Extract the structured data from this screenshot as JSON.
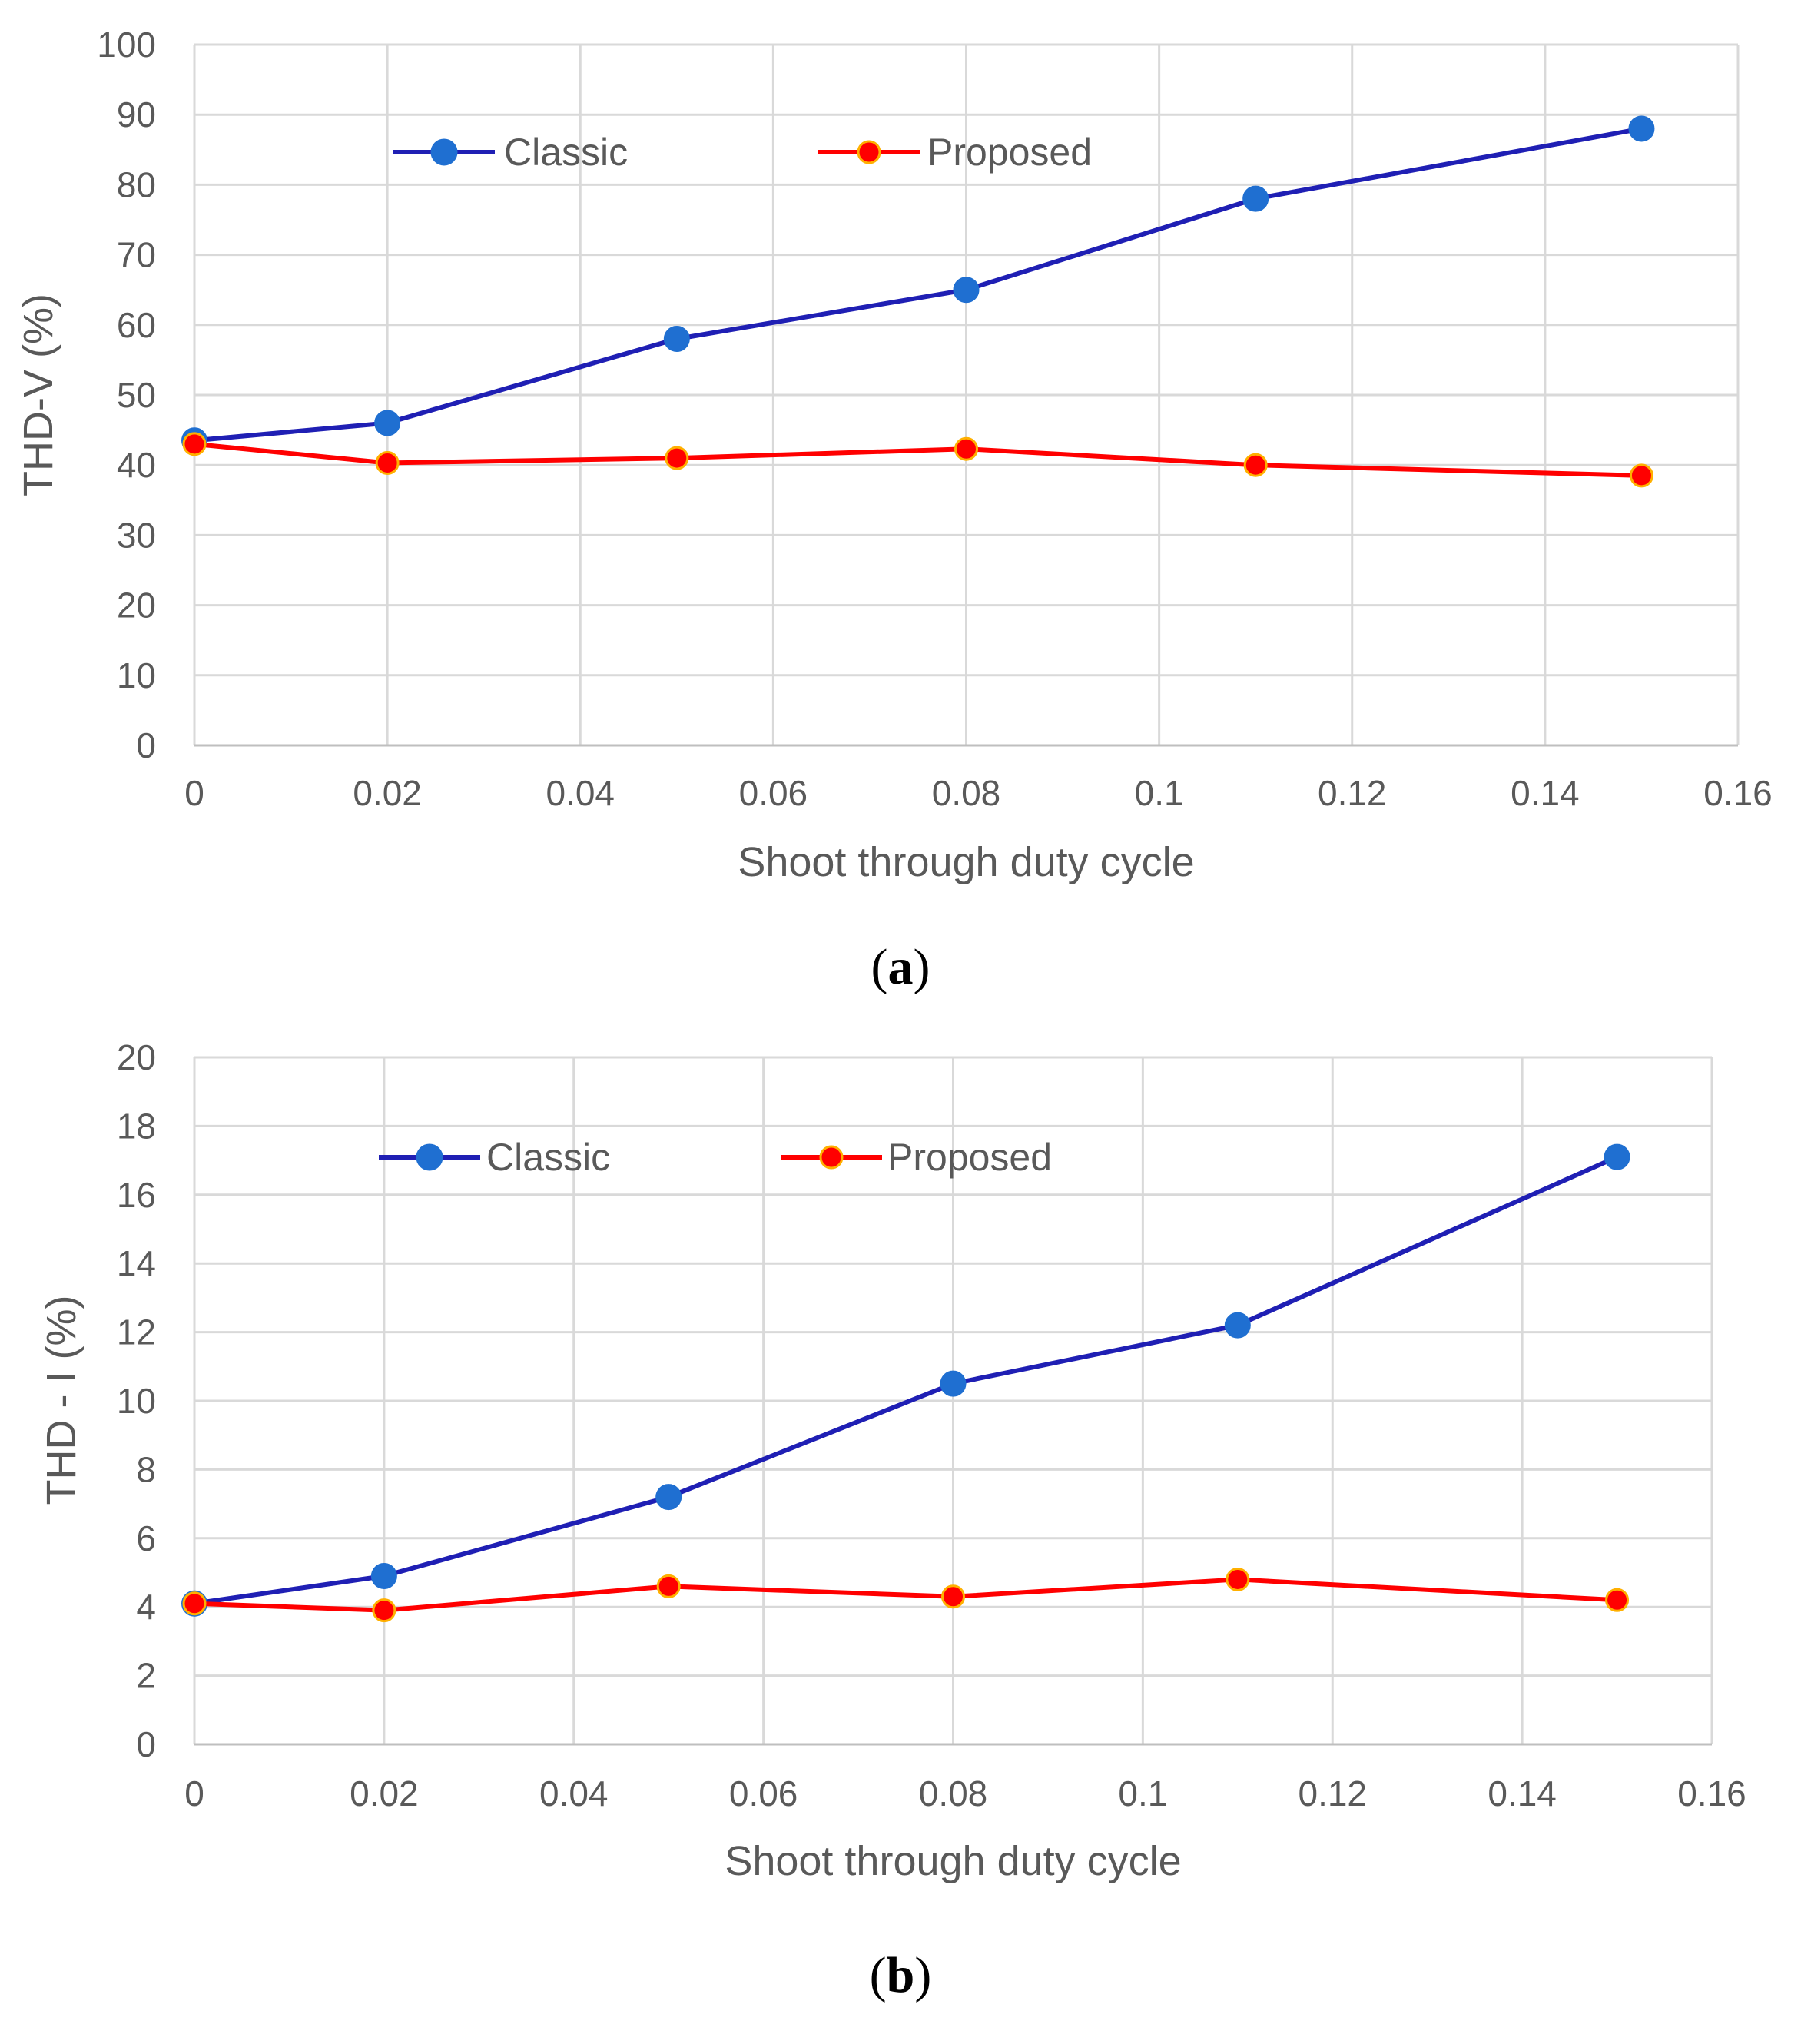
{
  "chart_data": [
    {
      "type": "line",
      "caption_letter": "a",
      "xlabel": "Shoot through duty cycle",
      "ylabel": "THD-V (%)",
      "xlim": [
        0,
        0.16
      ],
      "ylim": [
        0,
        100
      ],
      "x_ticks": [
        "0",
        "0.02",
        "0.04",
        "0.06",
        "0.08",
        "0.1",
        "0.12",
        "0.14",
        "0.16"
      ],
      "y_ticks": [
        "0",
        "10",
        "20",
        "30",
        "40",
        "50",
        "60",
        "70",
        "80",
        "90",
        "100"
      ],
      "grid": true,
      "legend_position": "top-left",
      "series": [
        {
          "name": "Classic",
          "color": "#1f1fb4",
          "marker_color": "#1f6fd1",
          "x": [
            0,
            0.02,
            0.05,
            0.08,
            0.11,
            0.15
          ],
          "values": [
            43.5,
            46,
            58,
            65,
            78,
            88
          ]
        },
        {
          "name": "Proposed",
          "color": "#ff0000",
          "marker_color": "#ff0000",
          "x": [
            0,
            0.02,
            0.05,
            0.08,
            0.11,
            0.15
          ],
          "values": [
            43,
            40.3,
            41,
            42.3,
            40,
            38.5
          ]
        }
      ]
    },
    {
      "type": "line",
      "caption_letter": "b",
      "xlabel": "Shoot through duty cycle",
      "ylabel": "THD - I (%)",
      "xlim": [
        0,
        0.16
      ],
      "ylim": [
        0,
        20
      ],
      "x_ticks": [
        "0",
        "0.02",
        "0.04",
        "0.06",
        "0.08",
        "0.1",
        "0.12",
        "0.14",
        "0.16"
      ],
      "y_ticks": [
        "0",
        "2",
        "4",
        "6",
        "8",
        "10",
        "12",
        "14",
        "16",
        "18",
        "20"
      ],
      "grid": true,
      "legend_position": "top-left",
      "series": [
        {
          "name": "Classic",
          "color": "#1f1fb4",
          "marker_color": "#1f6fd1",
          "x": [
            0,
            0.02,
            0.05,
            0.08,
            0.11,
            0.15
          ],
          "values": [
            4.1,
            4.9,
            7.2,
            10.5,
            12.2,
            17.1
          ]
        },
        {
          "name": "Proposed",
          "color": "#ff0000",
          "marker_color": "#ff0000",
          "x": [
            0,
            0.02,
            0.05,
            0.08,
            0.11,
            0.15
          ],
          "values": [
            4.1,
            3.9,
            4.6,
            4.3,
            4.8,
            4.2
          ]
        }
      ]
    }
  ]
}
